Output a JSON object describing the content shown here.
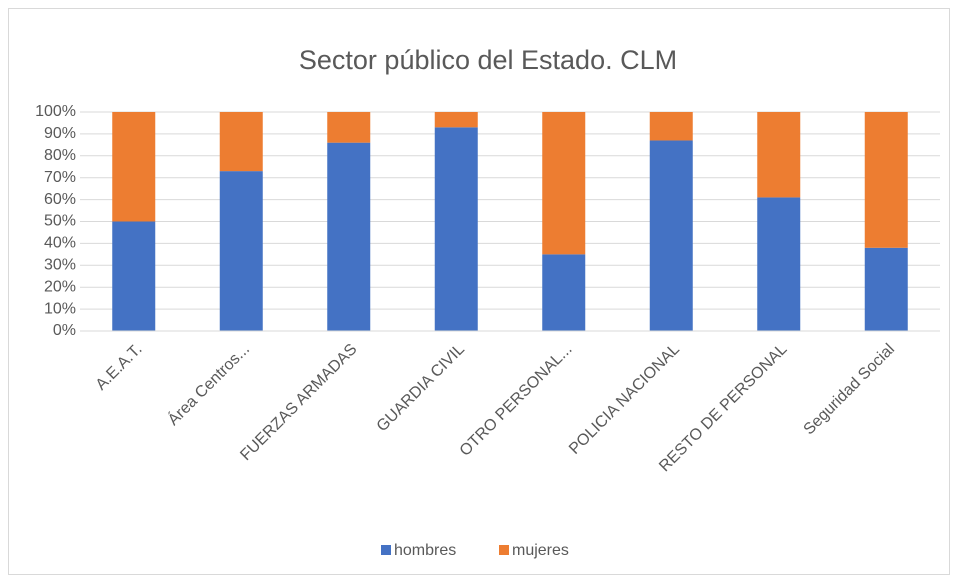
{
  "chart_data": {
    "type": "stacked_bar_100",
    "title": "Sector público del Estado. CLM",
    "categories": [
      "A.E.A.T.",
      "Área Centros...",
      "FUERZAS ARMADAS",
      "GUARDIA CIVIL",
      "OTRO PERSONAL...",
      "POLICIA NACIONAL",
      "RESTO DE PERSONAL",
      "Seguridad Social"
    ],
    "series": [
      {
        "name": "hombres",
        "color": "#4472c4",
        "values": [
          50,
          73,
          86,
          93,
          35,
          87,
          61,
          38
        ]
      },
      {
        "name": "mujeres",
        "color": "#ed7d31",
        "values": [
          50,
          27,
          14,
          7,
          65,
          13,
          39,
          62
        ]
      }
    ],
    "ylim": [
      0,
      100
    ],
    "yticks": [
      {
        "value": 0,
        "label": "0%"
      },
      {
        "value": 10,
        "label": "10%"
      },
      {
        "value": 20,
        "label": "20%"
      },
      {
        "value": 30,
        "label": "30%"
      },
      {
        "value": 40,
        "label": "40%"
      },
      {
        "value": 50,
        "label": "50%"
      },
      {
        "value": 60,
        "label": "60%"
      },
      {
        "value": 70,
        "label": "70%"
      },
      {
        "value": 80,
        "label": "80%"
      },
      {
        "value": 90,
        "label": "90%"
      },
      {
        "value": 100,
        "label": "100%"
      }
    ],
    "grid": true,
    "legend": "bottom"
  }
}
